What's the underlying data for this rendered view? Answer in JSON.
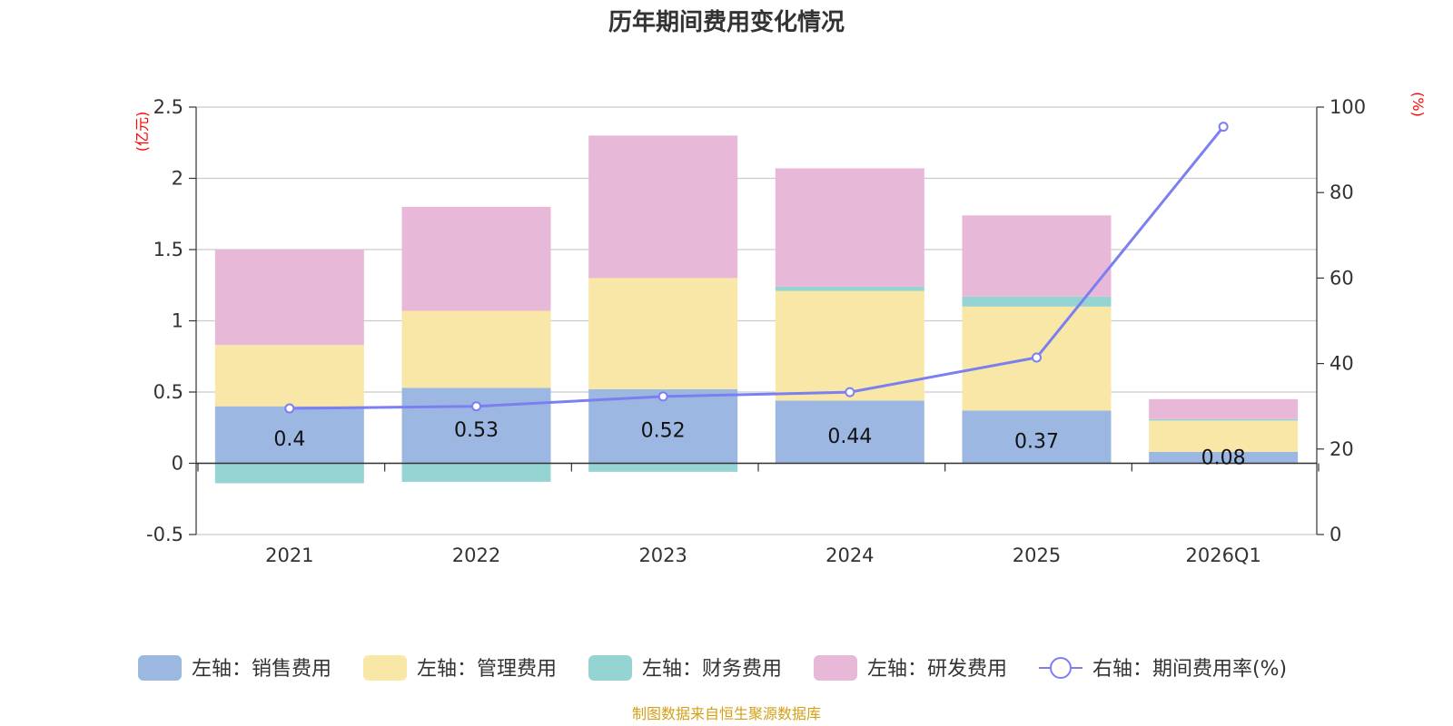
{
  "chart_data": {
    "type": "bar",
    "title": "历年期间费用变化情况",
    "categories": [
      "2021",
      "2022",
      "2023",
      "2024",
      "2025",
      "2026Q1"
    ],
    "left_axis": {
      "unit": "(亿元)",
      "ylim": [
        -0.5,
        2.5
      ],
      "ticks": [
        -0.5,
        0,
        0.5,
        1,
        1.5,
        2,
        2.5
      ],
      "tick_labels": [
        "-0.5",
        "0",
        "0.5",
        "1",
        "1.5",
        "2",
        "2.5"
      ]
    },
    "right_axis": {
      "unit": "(%)",
      "ylim": [
        0,
        100
      ],
      "ticks": [
        0,
        20,
        40,
        60,
        80,
        100
      ],
      "tick_labels": [
        "0",
        "20",
        "40",
        "60",
        "80",
        "100"
      ]
    },
    "series": [
      {
        "name": "左轴：销售费用",
        "type": "bar",
        "color": "#9cb8e2",
        "values": [
          0.4,
          0.53,
          0.52,
          0.44,
          0.37,
          0.08
        ]
      },
      {
        "name": "左轴：管理费用",
        "type": "bar",
        "color": "#f8e7a6",
        "values": [
          0.43,
          0.54,
          0.78,
          0.77,
          0.73,
          0.22
        ]
      },
      {
        "name": "左轴：财务费用",
        "type": "bar",
        "color": "#96d4d4",
        "values": [
          -0.14,
          -0.13,
          -0.06,
          0.03,
          0.07,
          0.01
        ]
      },
      {
        "name": "左轴：研发费用",
        "type": "bar",
        "color": "#e8b8d8",
        "values": [
          0.67,
          0.73,
          1.0,
          0.83,
          0.57,
          0.14
        ]
      },
      {
        "name": "右轴：期间费用率(%)",
        "type": "line",
        "color": "#7b7fef",
        "values": [
          29.5,
          30.0,
          32.3,
          33.3,
          41.4,
          95.4
        ]
      }
    ],
    "data_labels": [
      "0.4",
      "0.53",
      "0.52",
      "0.44",
      "0.37",
      "0.08"
    ],
    "legend_position": "bottom",
    "grid": true
  },
  "footer": {
    "source": "制图数据来自恒生聚源数据库"
  }
}
